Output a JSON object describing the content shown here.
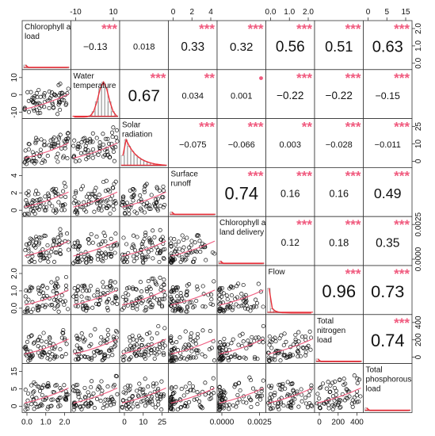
{
  "chart_data": {
    "type": "scatter-matrix",
    "variables": [
      {
        "label": "Chlorophyll a load",
        "lines": [
          "Chlorophyll a",
          "load"
        ]
      },
      {
        "label": "Water temperature",
        "lines": [
          "Water",
          "temperature"
        ]
      },
      {
        "label": "Solar radiation",
        "lines": [
          "Solar",
          "radiation"
        ]
      },
      {
        "label": "Surface runoff",
        "lines": [
          "Surface",
          "runoff"
        ]
      },
      {
        "label": "Chlorophyll a land delivery",
        "lines": [
          "Chlorophyll a",
          "land delivery"
        ]
      },
      {
        "label": "Flow",
        "lines": [
          "Flow"
        ]
      },
      {
        "label": "Total nitrogen load",
        "lines": [
          "Total",
          "nitrogen",
          "load"
        ]
      },
      {
        "label": "Total phosphorous load",
        "lines": [
          "Total",
          "phosphorous",
          "load"
        ]
      }
    ],
    "correlations": [
      {
        "row": 0,
        "col": 1,
        "value": "−0.13",
        "stars": "***"
      },
      {
        "row": 0,
        "col": 2,
        "value": "0.018",
        "stars": ""
      },
      {
        "row": 0,
        "col": 3,
        "value": "0.33",
        "stars": "***"
      },
      {
        "row": 0,
        "col": 4,
        "value": "0.32",
        "stars": "***"
      },
      {
        "row": 0,
        "col": 5,
        "value": "0.56",
        "stars": "***"
      },
      {
        "row": 0,
        "col": 6,
        "value": "0.51",
        "stars": "***"
      },
      {
        "row": 0,
        "col": 7,
        "value": "0.63",
        "stars": "***"
      },
      {
        "row": 1,
        "col": 2,
        "value": "0.67",
        "stars": "***"
      },
      {
        "row": 1,
        "col": 3,
        "value": "0.034",
        "stars": "**"
      },
      {
        "row": 1,
        "col": 4,
        "value": "0.001",
        "stars": "•"
      },
      {
        "row": 1,
        "col": 5,
        "value": "−0.22",
        "stars": "***"
      },
      {
        "row": 1,
        "col": 6,
        "value": "−0.22",
        "stars": "***"
      },
      {
        "row": 1,
        "col": 7,
        "value": "−0.15",
        "stars": "***"
      },
      {
        "row": 2,
        "col": 3,
        "value": "−0.075",
        "stars": "***"
      },
      {
        "row": 2,
        "col": 4,
        "value": "−0.066",
        "stars": "***"
      },
      {
        "row": 2,
        "col": 5,
        "value": "0.003",
        "stars": "**"
      },
      {
        "row": 2,
        "col": 6,
        "value": "−0.028",
        "stars": "***"
      },
      {
        "row": 2,
        "col": 7,
        "value": "−0.011",
        "stars": "***"
      },
      {
        "row": 3,
        "col": 4,
        "value": "0.74",
        "stars": "***"
      },
      {
        "row": 3,
        "col": 5,
        "value": "0.16",
        "stars": "***"
      },
      {
        "row": 3,
        "col": 6,
        "value": "0.16",
        "stars": "***"
      },
      {
        "row": 3,
        "col": 7,
        "value": "0.49",
        "stars": "***"
      },
      {
        "row": 4,
        "col": 5,
        "value": "0.12",
        "stars": "***"
      },
      {
        "row": 4,
        "col": 6,
        "value": "0.18",
        "stars": "***"
      },
      {
        "row": 4,
        "col": 7,
        "value": "0.35",
        "stars": "***"
      },
      {
        "row": 5,
        "col": 6,
        "value": "0.96",
        "stars": "***"
      },
      {
        "row": 5,
        "col": 7,
        "value": "0.73",
        "stars": "***"
      },
      {
        "row": 6,
        "col": 7,
        "value": "0.74",
        "stars": "***"
      }
    ],
    "top_axis": [
      {
        "col": 1,
        "ticks": [
          "-10",
          "10"
        ]
      },
      {
        "col": 3,
        "ticks": [
          "0",
          "2",
          "4"
        ]
      },
      {
        "col": 5,
        "ticks": [
          "0.0",
          "1.0",
          "2.0"
        ]
      },
      {
        "col": 7,
        "ticks": [
          "0",
          "5",
          "15"
        ]
      }
    ],
    "bottom_axis": [
      {
        "col": 0,
        "ticks": [
          "0.0",
          "1.0",
          "2.0"
        ]
      },
      {
        "col": 2,
        "ticks": [
          "0",
          "10",
          "25"
        ]
      },
      {
        "col": 4,
        "ticks": [
          "0.0000",
          "0.0025"
        ]
      },
      {
        "col": 6,
        "ticks": [
          "0",
          "200",
          "400"
        ]
      }
    ],
    "left_axis": [
      {
        "row": 1,
        "ticks": [
          "10",
          "0",
          "-10"
        ]
      },
      {
        "row": 3,
        "ticks": [
          "4",
          "2",
          "0"
        ]
      },
      {
        "row": 5,
        "ticks": [
          "2.0",
          "1.0",
          "0.0"
        ]
      },
      {
        "row": 7,
        "ticks": [
          "15",
          "5",
          "0"
        ]
      }
    ],
    "right_axis": [
      {
        "row": 0,
        "ticks": [
          "2.0",
          "1.0",
          "0.0"
        ]
      },
      {
        "row": 2,
        "ticks": [
          "25",
          "10",
          "0"
        ]
      },
      {
        "row": 4,
        "ticks": [
          "0.0025",
          "0.0000"
        ]
      },
      {
        "row": 6,
        "ticks": [
          "400",
          "200",
          "0"
        ]
      }
    ],
    "colors": {
      "points": "#111111",
      "smooth": "#f05a7e",
      "stars": "#f05a7e",
      "hist": "#9a9a9a",
      "density": "#e8303a",
      "frame": "#333333"
    }
  }
}
